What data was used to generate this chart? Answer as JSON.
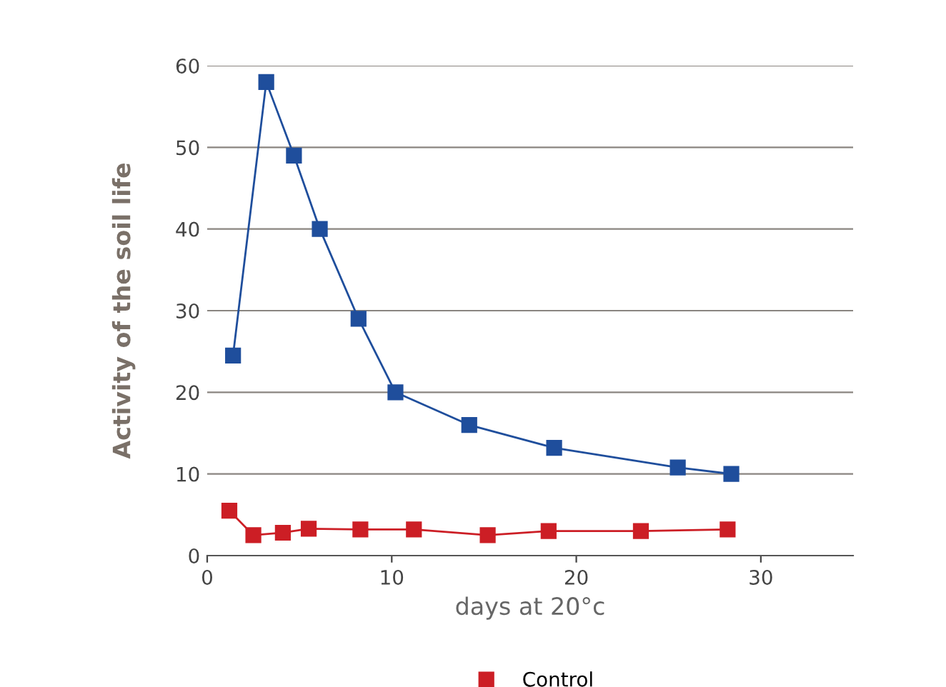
{
  "chart_data": {
    "type": "line",
    "xlabel": "days at 20°c",
    "ylabel": "Activity of the soil life",
    "xlim": [
      0,
      35
    ],
    "xticks": [
      0,
      10,
      20,
      30
    ],
    "ylim": [
      0,
      60
    ],
    "yticks": [
      0,
      10,
      20,
      30,
      40,
      50,
      60
    ],
    "grid": "y",
    "marker": "square",
    "legend": "bottom",
    "series": [
      {
        "name": "Control",
        "color": "#cc1e25",
        "x": [
          1.2,
          2.5,
          4.1,
          5.5,
          8.3,
          11.2,
          15.2,
          18.5,
          23.5,
          28.2
        ],
        "values": [
          5.5,
          2.5,
          2.8,
          3.3,
          3.2,
          3.2,
          2.5,
          3.0,
          3.0,
          3.2
        ]
      },
      {
        "color": "#1f4e9c",
        "x": [
          1.4,
          3.2,
          4.7,
          6.1,
          8.2,
          10.2,
          14.2,
          18.8,
          25.5,
          28.4
        ],
        "values": [
          24.5,
          58,
          49,
          40,
          29,
          20,
          16,
          13.2,
          10.8,
          10
        ]
      }
    ]
  }
}
